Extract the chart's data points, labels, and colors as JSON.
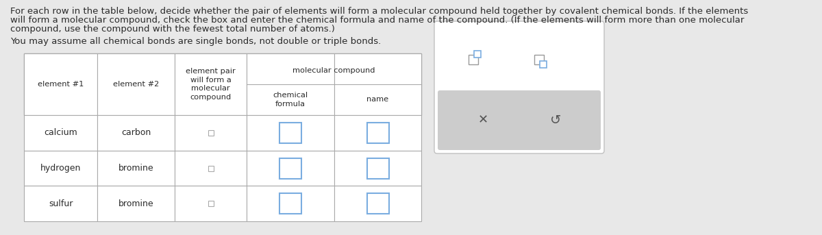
{
  "bg_color": "#e8e8e8",
  "title_line1": "For each row in the table below, decide whether the pair of elements will form a molecular compound held together by covalent chemical bonds. If the elements",
  "title_line2": "will form a molecular compound, check the box and enter the chemical formula and name of the compound. (If the elements will form more than one molecular",
  "title_line3": "compound, use the compound with the fewest total number of atoms.)",
  "subtitle_text": "You may assume all chemical bonds are single bonds, not double or triple bonds.",
  "text_color": "#2a2a2a",
  "grid_color": "#aaaaaa",
  "checkbox_small_color": "#999999",
  "checkbox_blue_color": "#7aade0",
  "panel_bg": "#ffffff",
  "panel_border": "#c0c0c0",
  "panel_bar_bg": "#cccccc",
  "rows": [
    [
      "calcium",
      "carbon"
    ],
    [
      "hydrogen",
      "bromine"
    ],
    [
      "sulfur",
      "bromine"
    ]
  ]
}
